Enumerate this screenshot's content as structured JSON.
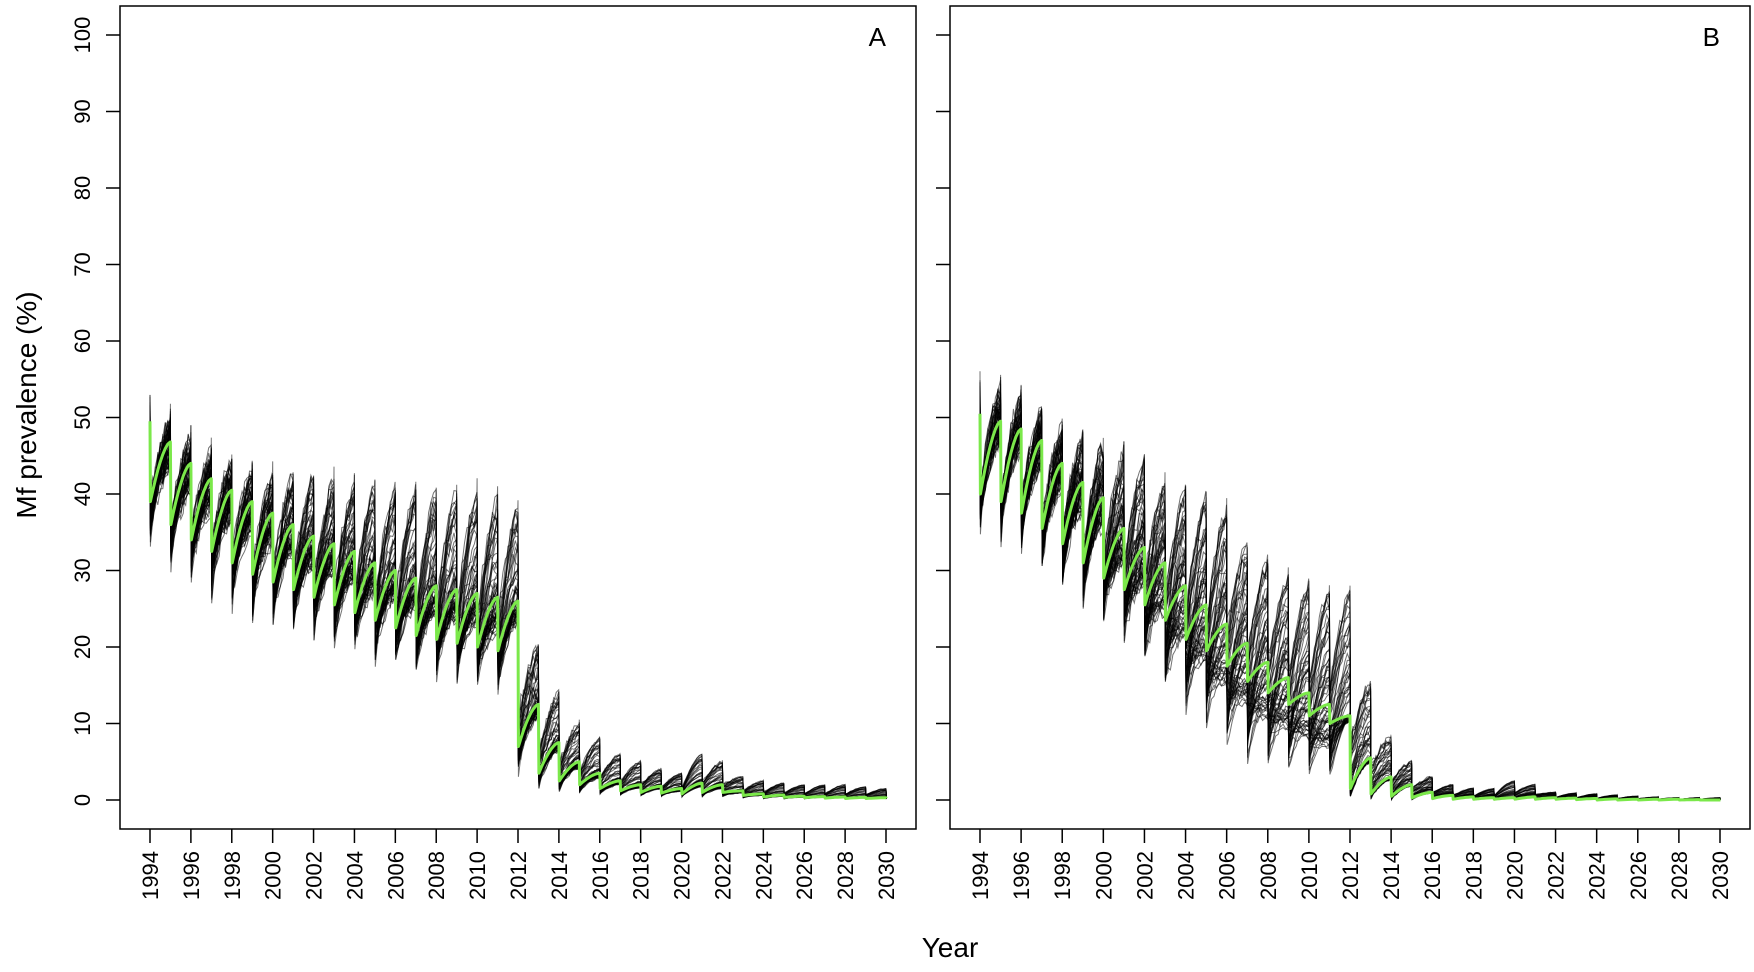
{
  "chart_data": [
    {
      "type": "line",
      "panel_label": "A",
      "ylabel": "Mf prevalence (%)",
      "xlabel": "Year",
      "xlim": [
        1994,
        2030
      ],
      "ylim": [
        0,
        100
      ],
      "x_ticks": [
        1994,
        1996,
        1998,
        2000,
        2002,
        2004,
        2006,
        2008,
        2010,
        2012,
        2014,
        2016,
        2018,
        2020,
        2022,
        2024,
        2026,
        2028,
        2030
      ],
      "y_ticks": [
        0,
        10,
        20,
        30,
        40,
        50,
        60,
        70,
        80,
        90,
        100
      ],
      "mean_series": {
        "color": "#7be84a",
        "x": [
          1994,
          1995,
          1996,
          1997,
          1998,
          1999,
          2000,
          2001,
          2002,
          2003,
          2004,
          2005,
          2006,
          2007,
          2008,
          2009,
          2010,
          2011,
          2012,
          2013,
          2014,
          2015,
          2016,
          2017,
          2018,
          2019,
          2020,
          2021,
          2022,
          2023,
          2024,
          2026,
          2028,
          2030
        ],
        "pre_mda": [
          49.5,
          46.8,
          44.0,
          42.0,
          40.5,
          39.0,
          37.5,
          36.0,
          34.5,
          33.5,
          32.5,
          31.0,
          30.0,
          29.0,
          28.0,
          27.5,
          27.0,
          26.5,
          26.0,
          12.5,
          7.5,
          5.0,
          3.5,
          2.5,
          2.0,
          1.8,
          1.5,
          2.2,
          2.0,
          1.2,
          0.8,
          0.5,
          0.4,
          0.3
        ],
        "post_mda": [
          39.0,
          36.0,
          34.0,
          32.5,
          31.0,
          29.5,
          28.5,
          27.5,
          26.5,
          25.5,
          24.5,
          23.5,
          22.5,
          21.5,
          21.0,
          20.5,
          20.0,
          19.5,
          7.0,
          3.5,
          2.5,
          2.0,
          1.5,
          1.2,
          1.0,
          0.9,
          0.8,
          1.0,
          1.0,
          0.6,
          0.4,
          0.3,
          0.2,
          0.2
        ]
      },
      "run_envelope_pre": [
        51,
        49,
        47,
        45,
        44,
        43,
        42,
        42,
        42,
        41.5,
        41,
        41,
        40.5,
        40.5,
        40,
        40,
        40,
        39,
        38,
        20,
        14,
        10,
        8,
        6,
        5,
        4,
        3.5,
        6,
        5,
        3,
        2.5,
        2,
        2,
        1.5
      ],
      "run_envelope_post": [
        35,
        31,
        29,
        27,
        25,
        24,
        23,
        22,
        21,
        20,
        19,
        18,
        17,
        16,
        15.5,
        15,
        14.5,
        13,
        3,
        1.5,
        1,
        0.8,
        0.6,
        0.5,
        0.4,
        0.4,
        0.3,
        0.3,
        0.3,
        0.2,
        0.1,
        0.1,
        0.1,
        0.1
      ]
    },
    {
      "type": "line",
      "panel_label": "B",
      "xlabel": "Year",
      "xlim": [
        1994,
        2030
      ],
      "ylim": [
        0,
        100
      ],
      "x_ticks": [
        1994,
        1996,
        1998,
        2000,
        2002,
        2004,
        2006,
        2008,
        2010,
        2012,
        2014,
        2016,
        2018,
        2020,
        2022,
        2024,
        2026,
        2028,
        2030
      ],
      "y_ticks": [
        0,
        10,
        20,
        30,
        40,
        50,
        60,
        70,
        80,
        90,
        100
      ],
      "mean_series": {
        "color": "#7be84a",
        "x": [
          1994,
          1995,
          1996,
          1997,
          1998,
          1999,
          2000,
          2001,
          2002,
          2003,
          2004,
          2005,
          2006,
          2007,
          2008,
          2009,
          2010,
          2011,
          2012,
          2013,
          2014,
          2015,
          2016,
          2017,
          2018,
          2019,
          2020,
          2021,
          2022,
          2024,
          2026,
          2028,
          2030
        ],
        "pre_mda": [
          50.5,
          49.5,
          48.5,
          47.0,
          44.0,
          41.5,
          39.5,
          35.5,
          33.0,
          31.0,
          28.0,
          25.5,
          23.0,
          20.5,
          18.0,
          16.0,
          14.0,
          12.5,
          11.0,
          5.5,
          3.0,
          2.0,
          1.0,
          0.6,
          0.4,
          0.3,
          0.3,
          0.4,
          0.3,
          0.2,
          0.1,
          0.1,
          0.0
        ],
        "post_mda": [
          40.0,
          39.0,
          37.5,
          35.5,
          33.5,
          31.0,
          29.0,
          27.5,
          25.5,
          23.5,
          21.0,
          19.5,
          17.5,
          15.5,
          14.0,
          12.5,
          11.0,
          10.0,
          1.5,
          0.8,
          0.5,
          0.3,
          0.2,
          0.1,
          0.1,
          0.1,
          0.1,
          0.1,
          0.1,
          0.0,
          0.0,
          0.0,
          0.0
        ],
        "envelope_pre": [
          53,
          53,
          52,
          50,
          48,
          47,
          46,
          45,
          44,
          41,
          40,
          39,
          38,
          33,
          31,
          29,
          28,
          27.5,
          27,
          15,
          8,
          5,
          3,
          2,
          1.5,
          1.5,
          2.5,
          2,
          1,
          0.8,
          0.5,
          0.3,
          0.3
        ],
        "envelope_post": [
          37,
          35,
          34,
          31,
          29,
          26,
          24,
          21,
          18,
          14,
          11,
          9,
          6,
          4,
          3.5,
          3,
          2.5,
          2,
          0.5,
          0.2,
          0.1,
          0.1,
          0.1,
          0.0,
          0.0,
          0.0,
          0.0,
          0.0,
          0.0,
          0.0,
          0.0,
          0.0,
          0.0
        ]
      }
    }
  ]
}
